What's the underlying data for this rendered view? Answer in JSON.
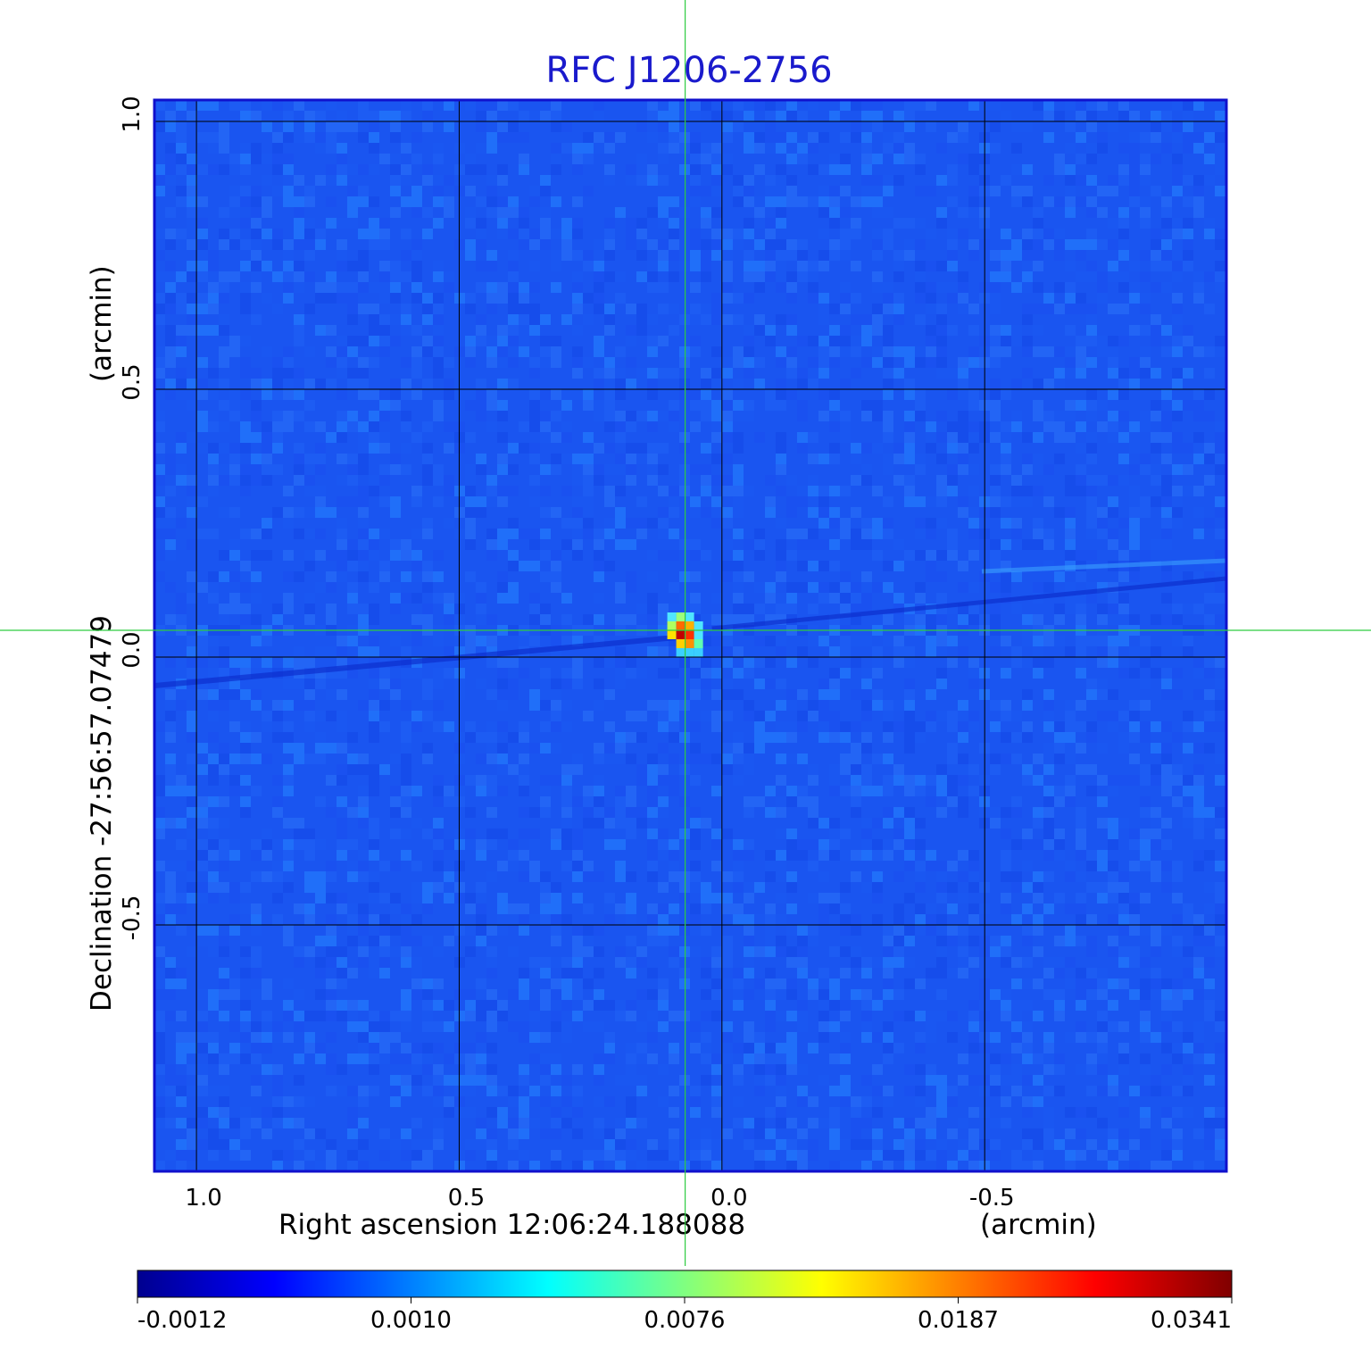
{
  "chart_data": {
    "type": "heatmap",
    "title": "RFC J1206-2756",
    "xlabel": "Right ascension  12:06:24.188088",
    "xunit": "(arcmin)",
    "ylabel": "Declination  -27:56:57.07479",
    "yunit": "(arcmin)",
    "xlim": [
      1.08,
      -0.96
    ],
    "ylim": [
      -0.96,
      1.04
    ],
    "xticks": [
      "1.0",
      "0.5",
      "0.0",
      "-0.5"
    ],
    "xtick_values": [
      1.0,
      0.5,
      0.0,
      -0.5
    ],
    "yticks": [
      "1.0",
      "0.5",
      "0.0",
      "-0.5"
    ],
    "ytick_values": [
      1.0,
      0.5,
      0.0,
      -0.5
    ],
    "grid": true,
    "source": {
      "ra_offset_arcmin": 0.07,
      "dec_offset_arcmin": 0.05,
      "peak": 0.0341
    },
    "crosshair": {
      "x_arcmin": 0.07,
      "y_arcmin": 0.05,
      "color": "#2ecc40"
    },
    "colorbar": {
      "ticks": [
        "-0.0012",
        "0.0010",
        "0.0076",
        "0.0187",
        "0.0341"
      ],
      "tick_values": [
        -0.0012,
        0.001,
        0.0076,
        0.0187,
        0.0341
      ],
      "colormap": "jet",
      "placement": "bottom"
    },
    "colors": {
      "title": "#1a1acc",
      "frame": "#1010cc",
      "background_map": "#1a55f0"
    }
  }
}
